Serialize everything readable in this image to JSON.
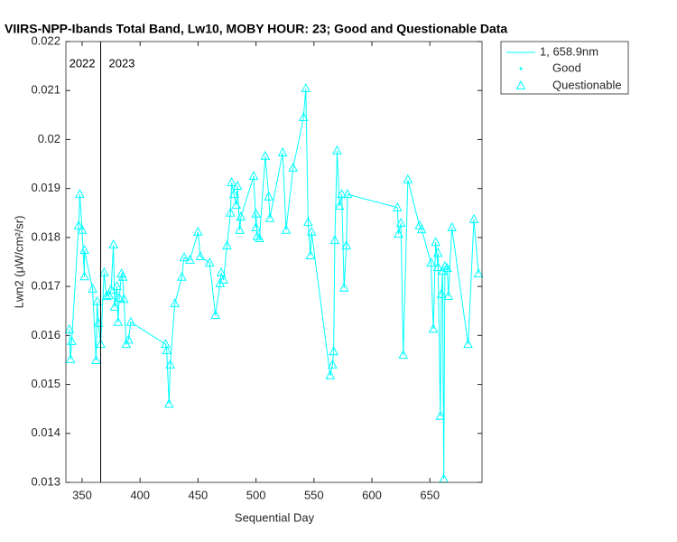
{
  "chart_data": {
    "type": "line",
    "title": "VIIRS-NPP-Ibands Total Band, Lw10, MOBY HOUR: 23;  Good and Questionable Data",
    "x_label": "Sequential Day",
    "y_label": "Lwn2 (μW/cm²/sr)",
    "xlim": [
      336,
      695
    ],
    "ylim": [
      0.013,
      0.022
    ],
    "xticks": [
      350,
      400,
      450,
      500,
      550,
      600,
      650
    ],
    "yticks": [
      0.013,
      0.014,
      0.015,
      0.016,
      0.017,
      0.018,
      0.019,
      0.02,
      0.021,
      0.022
    ],
    "annotation": {
      "vline_x": 366,
      "left_label": "2022",
      "right_label": "2023"
    },
    "legend_markers": [
      {
        "name": "Good",
        "symbol": "dot"
      },
      {
        "name": "Questionable",
        "symbol": "triangle"
      }
    ],
    "series": [
      {
        "name": "1, 658.9nm",
        "color": "#00ffff",
        "x": [
          339,
          340,
          341,
          347,
          348,
          350,
          352,
          352,
          359,
          362,
          363,
          364,
          366,
          369,
          371,
          373,
          375,
          377,
          378,
          380,
          381,
          382,
          384,
          385,
          386,
          388,
          390,
          392,
          422,
          423,
          425,
          426,
          430,
          436,
          438,
          443,
          450,
          452,
          460,
          465,
          469,
          470,
          472,
          475,
          478,
          479,
          481,
          483,
          484,
          486,
          487,
          498,
          500,
          500,
          501,
          503,
          508,
          511,
          512,
          523,
          526,
          532,
          541,
          543,
          545,
          547,
          548,
          564,
          566,
          567,
          568,
          570,
          572,
          574,
          576,
          578,
          579,
          622,
          623,
          625,
          627,
          631,
          641,
          643,
          651,
          653,
          655,
          657,
          657,
          659,
          660,
          661,
          662,
          663,
          665,
          666,
          669,
          683,
          688,
          692
        ],
        "values": [
          0.01612,
          0.01551,
          0.01588,
          0.01824,
          0.01888,
          0.01815,
          0.0172,
          0.01774,
          0.01695,
          0.01549,
          0.01669,
          0.01625,
          0.01582,
          0.01728,
          0.0168,
          0.01682,
          0.01693,
          0.01785,
          0.01658,
          0.017,
          0.01627,
          0.01676,
          0.01726,
          0.01719,
          0.01674,
          0.01582,
          0.01591,
          0.01627,
          0.01582,
          0.01569,
          0.0146,
          0.0154,
          0.01665,
          0.01719,
          0.01759,
          0.01754,
          0.01811,
          0.01761,
          0.01748,
          0.01641,
          0.01706,
          0.01728,
          0.01713,
          0.01783,
          0.0185,
          0.01912,
          0.01888,
          0.01866,
          0.01905,
          0.01815,
          0.01842,
          0.01925,
          0.0182,
          0.01848,
          0.01802,
          0.01798,
          0.01966,
          0.01883,
          0.01839,
          0.01973,
          0.01815,
          0.01942,
          0.02045,
          0.02104,
          0.01831,
          0.01763,
          0.01811,
          0.01518,
          0.0154,
          0.01567,
          0.01794,
          0.01977,
          0.01864,
          0.01888,
          0.01697,
          0.01783,
          0.01888,
          0.01861,
          0.01807,
          0.01829,
          0.0156,
          0.01918,
          0.01824,
          0.01816,
          0.01748,
          0.01613,
          0.0179,
          0.01739,
          0.01768,
          0.01435,
          0.01684,
          0.01731,
          0.01307,
          0.01741,
          0.01737,
          0.0168,
          0.0182,
          0.01582,
          0.01837,
          0.01726
        ]
      }
    ]
  }
}
